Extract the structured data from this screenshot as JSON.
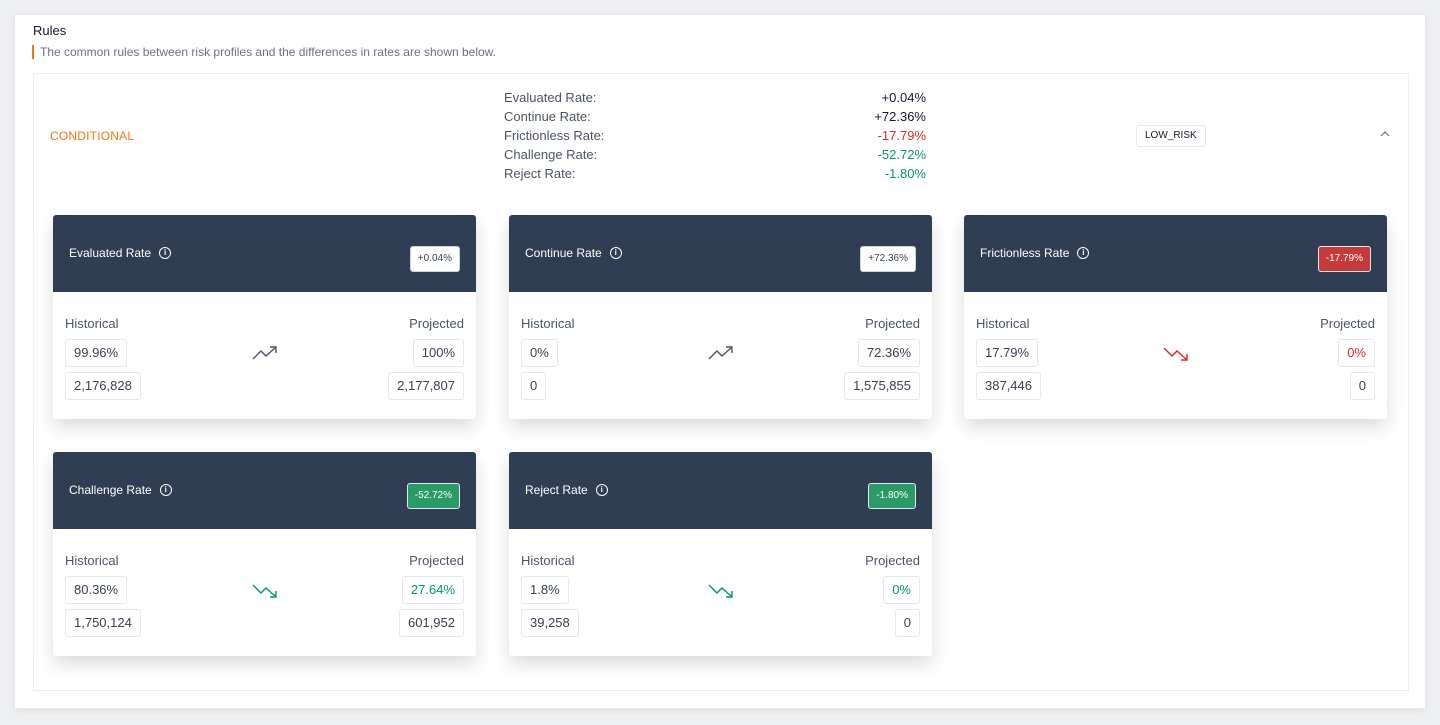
{
  "header": {
    "title": "Rules",
    "subtitle": "The common rules between risk profiles and the differences in rates are shown below."
  },
  "panel": {
    "label": "CONDITIONAL",
    "risk_badge": "LOW_RISK",
    "chevron": "^",
    "rates": [
      {
        "label": "Evaluated Rate:",
        "value": "+0.04%",
        "tone": "up"
      },
      {
        "label": "Continue Rate:",
        "value": "+72.36%",
        "tone": "up"
      },
      {
        "label": "Frictionless Rate:",
        "value": "-17.79%",
        "tone": "red"
      },
      {
        "label": "Challenge Rate:",
        "value": "-52.72%",
        "tone": "green"
      },
      {
        "label": "Reject Rate:",
        "value": "-1.80%",
        "tone": "green"
      }
    ]
  },
  "labels": {
    "historical": "Historical",
    "projected": "Projected",
    "info": "i"
  },
  "colors": {
    "header": "#2f3e52",
    "red": "#dc2626",
    "green": "#059669",
    "accent": "#f97316"
  },
  "cards": [
    {
      "title": "Evaluated Rate",
      "delta": "+0.04%",
      "delta_tone": "neutral",
      "trend": "up",
      "trend_color": "#4b5563",
      "hist_pct": "99.96%",
      "hist_count": "2,176,828",
      "proj_pct": "100%",
      "proj_count": "2,177,807",
      "proj_tone": ""
    },
    {
      "title": "Continue Rate",
      "delta": "+72.36%",
      "delta_tone": "neutral",
      "trend": "up",
      "trend_color": "#4b5563",
      "hist_pct": "0%",
      "hist_count": "0",
      "proj_pct": "72.36%",
      "proj_count": "1,575,855",
      "proj_tone": ""
    },
    {
      "title": "Frictionless Rate",
      "delta": "-17.79%",
      "delta_tone": "red",
      "trend": "down",
      "trend_color": "#dc2626",
      "hist_pct": "17.79%",
      "hist_count": "387,446",
      "proj_pct": "0%",
      "proj_count": "0",
      "proj_tone": "red"
    },
    {
      "title": "Challenge Rate",
      "delta": "-52.72%",
      "delta_tone": "green",
      "trend": "down",
      "trend_color": "#059669",
      "hist_pct": "80.36%",
      "hist_count": "1,750,124",
      "proj_pct": "27.64%",
      "proj_count": "601,952",
      "proj_tone": "green"
    },
    {
      "title": "Reject Rate",
      "delta": "-1.80%",
      "delta_tone": "green",
      "trend": "down",
      "trend_color": "#059669",
      "hist_pct": "1.8%",
      "hist_count": "39,258",
      "proj_pct": "0%",
      "proj_count": "0",
      "proj_tone": "green"
    }
  ]
}
